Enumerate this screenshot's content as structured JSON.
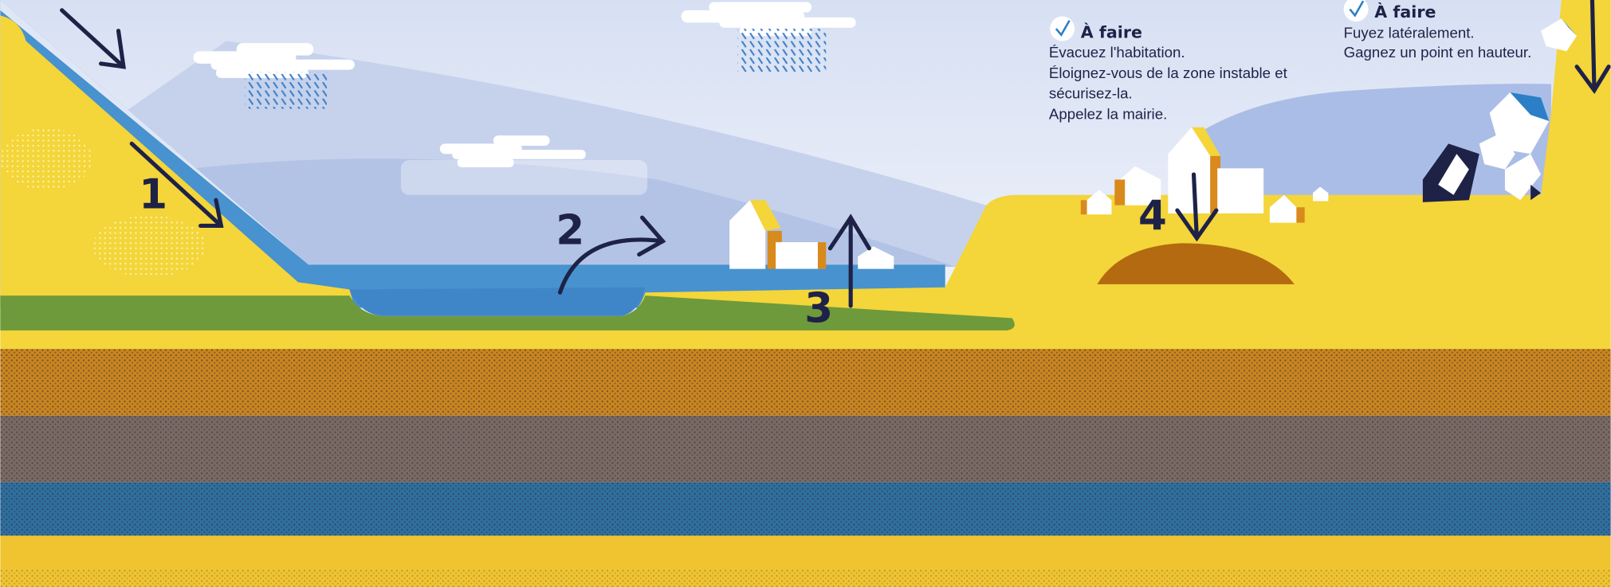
{
  "markers": [
    "1",
    "2",
    "3",
    "4"
  ],
  "panels": [
    {
      "heading": "À faire",
      "lines": [
        "Évacuez l'habitation.",
        "Éloignez-vous de la zone instable et",
        "sécurisez-la.",
        "Appelez la mairie."
      ]
    },
    {
      "heading": "À faire",
      "lines": [
        "Fuyez latéralement.",
        "Gagnez un point en hauteur."
      ]
    }
  ]
}
